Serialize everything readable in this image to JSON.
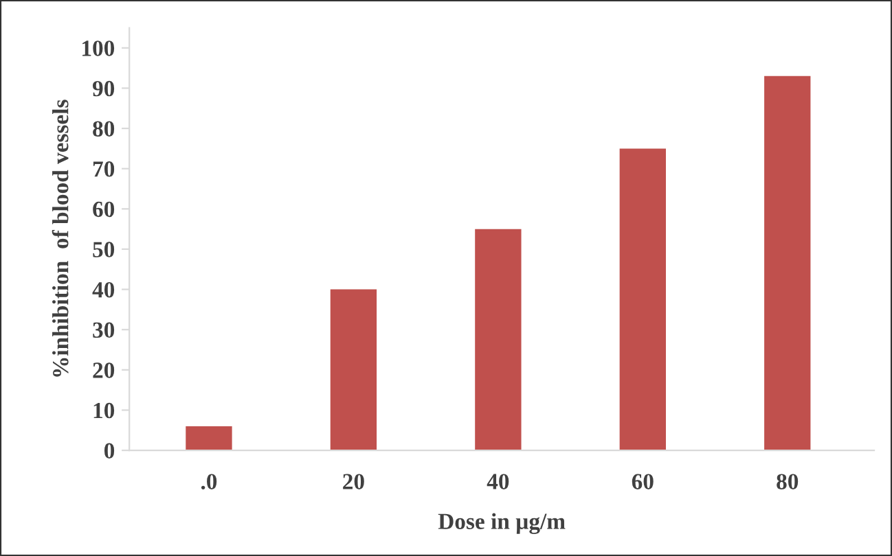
{
  "chart_data": {
    "type": "bar",
    "xlabel": "Dose in µg/m",
    "ylabel": "%inhibition  of blood vessels",
    "categories": [
      ".0",
      "20",
      "40",
      "60",
      "80"
    ],
    "values": [
      6,
      40,
      55,
      75,
      93
    ],
    "color": "#c0504d",
    "ylim": [
      0,
      105
    ],
    "yticks": [
      0,
      10,
      20,
      30,
      40,
      50,
      60,
      70,
      80,
      90,
      100
    ],
    "grid": false
  }
}
